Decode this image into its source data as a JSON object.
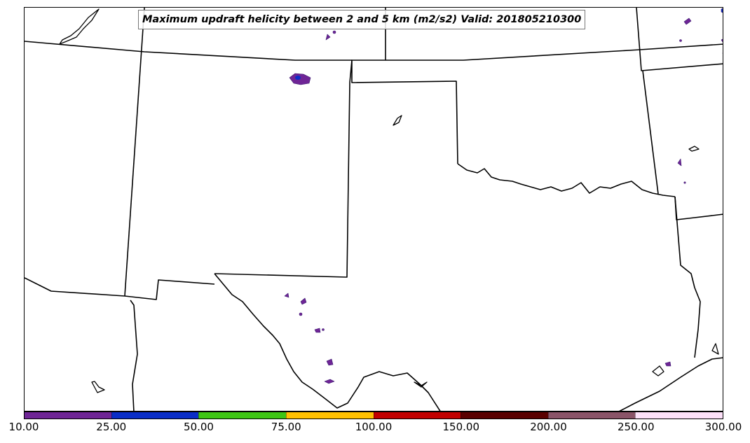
{
  "title": "Maximum updraft helicity between 2 and 5 km (m2/s2) Valid: 201805210300",
  "colorbar": {
    "ticks": [
      "10.00",
      "25.00",
      "50.00",
      "75.00",
      "100.00",
      "150.00",
      "200.00",
      "250.00",
      "300.00"
    ],
    "colors": [
      "#6f2596",
      "#0a2ec8",
      "#3ec514",
      "#ffc000",
      "#c20000",
      "#5a0000",
      "#8a5468",
      "#fce0f8"
    ]
  }
}
